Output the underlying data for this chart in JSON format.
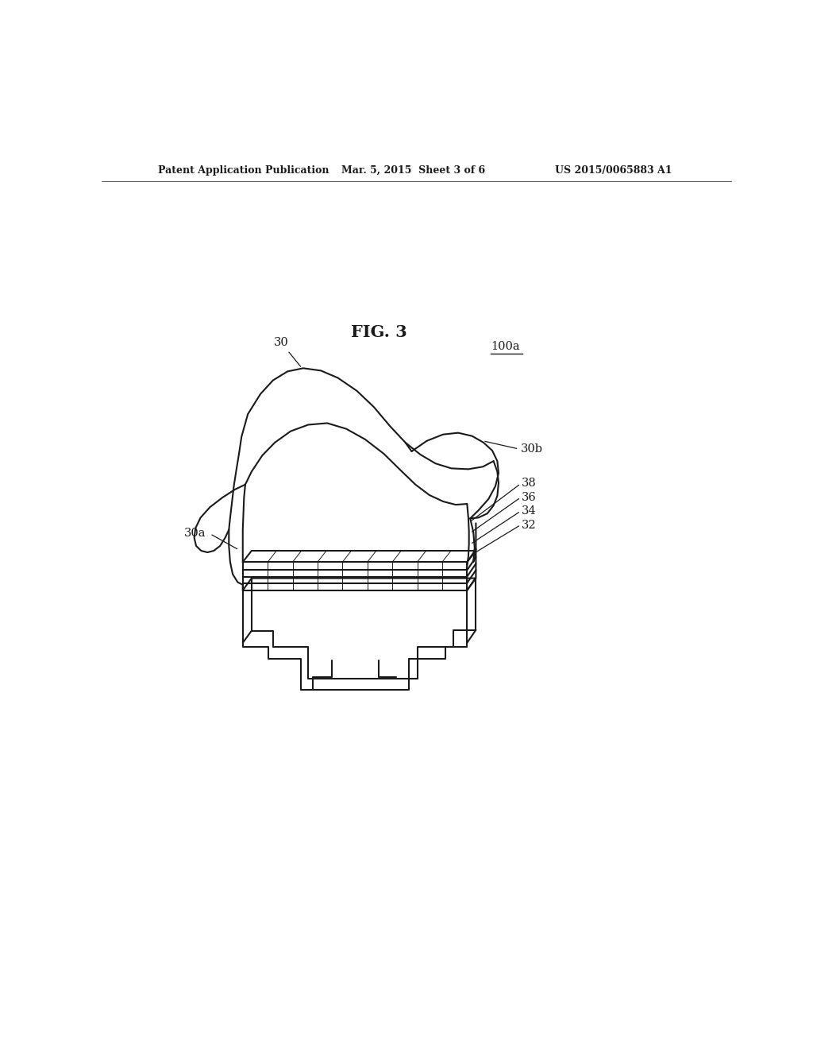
{
  "background_color": "#ffffff",
  "line_color": "#1a1a1a",
  "line_width": 1.5,
  "fig_width": 10.24,
  "fig_height": 13.2,
  "dpi": 100,
  "header_text": "Patent Application Publication",
  "header_date": "Mar. 5, 2015  Sheet 3 of 6",
  "header_patent": "US 2015/0065883 A1",
  "figure_label": "FIG. 3"
}
